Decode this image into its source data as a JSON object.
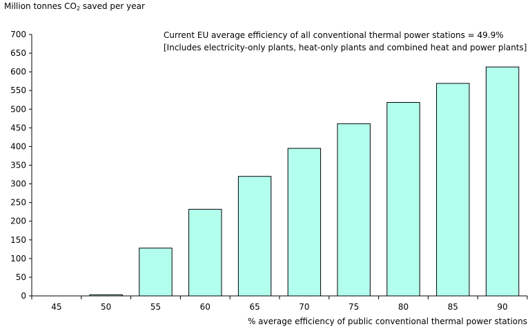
{
  "chart_data": {
    "type": "bar",
    "ylabel": {
      "pre": "Million tonnes CO",
      "sub": "2",
      "post": " saved per year"
    },
    "xlabel": "% average efficiency of public conventional thermal power stations",
    "annotations": [
      "Current EU average efficiency of all conventional thermal power stations = 49.9%",
      "[Includes electricity-only plants, heat-only plants and combined heat and power plants]"
    ],
    "categories": [
      "45",
      "50",
      "55",
      "60",
      "65",
      "70",
      "75",
      "80",
      "85",
      "90"
    ],
    "values": [
      0,
      3,
      128,
      232,
      320,
      395,
      461,
      518,
      569,
      613
    ],
    "ylim": [
      0,
      700
    ],
    "yticks": [
      0,
      50,
      100,
      150,
      200,
      250,
      300,
      350,
      400,
      450,
      500,
      550,
      600,
      650,
      700
    ],
    "grid": false,
    "bar_color": "#b3ffee"
  }
}
